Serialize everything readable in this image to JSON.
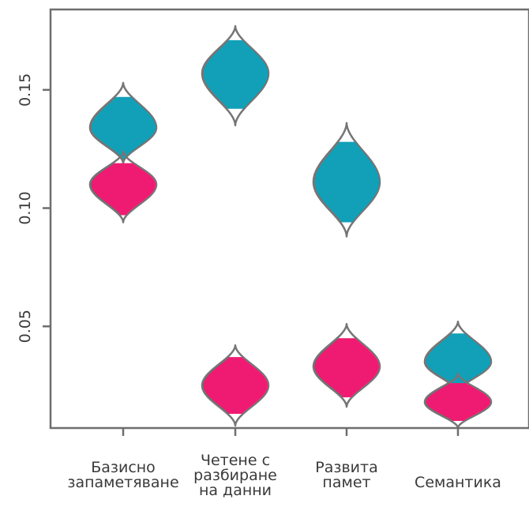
{
  "chart_data": {
    "type": "violin",
    "title": "",
    "xlabel": "",
    "ylabel": "",
    "ylim": [
      0.007,
      0.184
    ],
    "y_ticks": [
      {
        "value": 0.05,
        "label": "0.05"
      },
      {
        "value": 0.1,
        "label": "0.10"
      },
      {
        "value": 0.15,
        "label": "0.15"
      }
    ],
    "categories": [
      {
        "lines": [
          "Базисно",
          "запаметяване"
        ]
      },
      {
        "lines": [
          "Четене с",
          "разбиране",
          "на данни"
        ]
      },
      {
        "lines": [
          "Развита",
          "памет"
        ]
      },
      {
        "lines": [
          "Семантика"
        ]
      }
    ],
    "series": [
      {
        "color": "#11a0b8",
        "violins": [
          {
            "category": 0,
            "min": 0.119,
            "max": 0.153,
            "center": 0.134,
            "q1": 0.12,
            "q3": 0.147
          },
          {
            "category": 1,
            "min": 0.135,
            "max": 0.177,
            "center": 0.157,
            "q1": 0.142,
            "q3": 0.171
          },
          {
            "category": 2,
            "min": 0.088,
            "max": 0.136,
            "center": 0.111,
            "q1": 0.094,
            "q3": 0.128
          },
          {
            "category": 3,
            "min": 0.022,
            "max": 0.052,
            "center": 0.035,
            "q1": 0.025,
            "q3": 0.047
          }
        ]
      },
      {
        "color": "#ef1b72",
        "violins": [
          {
            "category": 0,
            "min": 0.094,
            "max": 0.124,
            "center": 0.11,
            "q1": 0.097,
            "q3": 0.119
          },
          {
            "category": 1,
            "min": 0.008,
            "max": 0.042,
            "center": 0.025,
            "q1": 0.013,
            "q3": 0.037
          },
          {
            "category": 2,
            "min": 0.016,
            "max": 0.051,
            "center": 0.033,
            "q1": 0.02,
            "q3": 0.045
          },
          {
            "category": 3,
            "min": 0.007,
            "max": 0.03,
            "center": 0.018,
            "q1": 0.01,
            "q3": 0.026
          }
        ]
      }
    ],
    "grid": false,
    "legend": "none",
    "colors": {
      "teal": "#11a0b8",
      "pink": "#ef1b72",
      "outline": "#757575",
      "axis": "#6e6e6e"
    }
  }
}
